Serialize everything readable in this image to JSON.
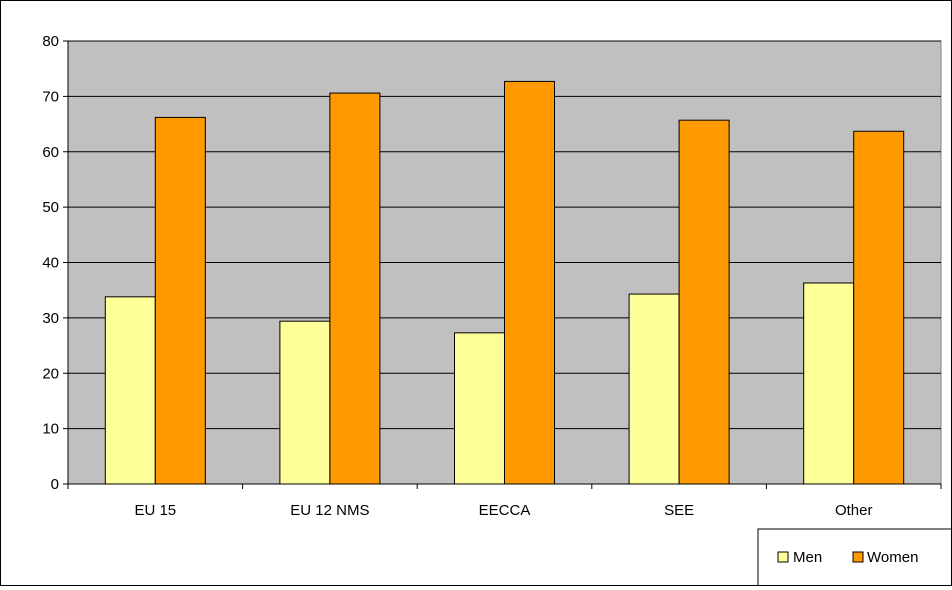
{
  "chart_data": {
    "type": "bar",
    "categories": [
      "EU 15",
      "EU 12 NMS",
      "EECCA",
      "SEE",
      "Other"
    ],
    "series": [
      {
        "name": "Men",
        "values": [
          33.8,
          29.4,
          27.3,
          34.3,
          36.3
        ],
        "color": "#ffff99"
      },
      {
        "name": "Women",
        "values": [
          66.2,
          70.6,
          72.7,
          65.7,
          63.7
        ],
        "color": "#ff9900"
      }
    ],
    "title": "",
    "xlabel": "",
    "ylabel": "",
    "ylim": [
      0,
      80
    ],
    "yticks": [
      0,
      10,
      20,
      30,
      40,
      50,
      60,
      70,
      80
    ],
    "grid": true,
    "plot_background": "#c0c0c0",
    "legend_position": "bottom-right"
  }
}
